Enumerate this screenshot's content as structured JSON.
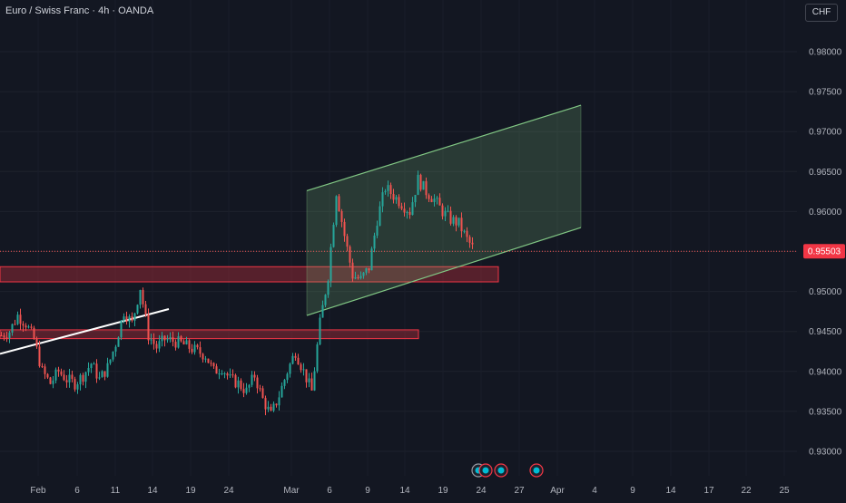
{
  "header": {
    "title": "Euro / Swiss Franc · 4h · OANDA",
    "currency": "CHF"
  },
  "colors": {
    "background": "#131722",
    "up": "#26a69a",
    "down": "#ef5350",
    "channel": "#81c784",
    "zone": "#f23645",
    "axis_text": "#b2b5be",
    "trendline": "#ffffff",
    "price_label_bg": "#f23645"
  },
  "chart_data": {
    "type": "candlestick",
    "title": "Euro / Swiss Franc · 4h · OANDA",
    "ylabel": "CHF",
    "ylim": [
      0.9285,
      0.9825
    ],
    "y_ticks": [
      "0.98000",
      "0.97500",
      "0.97000",
      "0.96500",
      "0.96000",
      "0.95500",
      "0.95000",
      "0.94500",
      "0.94000",
      "0.93500",
      "0.93000"
    ],
    "x_ticks": [
      "Feb",
      "6",
      "11",
      "14",
      "19",
      "24",
      "Mar",
      "6",
      "9",
      "14",
      "19",
      "24",
      "27",
      "Apr",
      "4",
      "9",
      "14",
      "17",
      "22",
      "25"
    ],
    "last_price": "0.95503",
    "series": [
      {
        "x": [
          0,
          9,
          18,
          27,
          36,
          45,
          54,
          63,
          72,
          81,
          90,
          99,
          108,
          117,
          126,
          135,
          144,
          153,
          162,
          171,
          180,
          189,
          198,
          207,
          216,
          225,
          234,
          243,
          252,
          261,
          270,
          279,
          288,
          297,
          306,
          315,
          324,
          333,
          342,
          351,
          360,
          369,
          378,
          387,
          396,
          405,
          414,
          423,
          432,
          441,
          450,
          459,
          468,
          477,
          486,
          495,
          504,
          513,
          522
        ],
        "y": [
          0.9445,
          0.945,
          0.947,
          0.946,
          0.944,
          0.94,
          0.9385,
          0.94,
          0.939,
          0.9385,
          0.9395,
          0.941,
          0.939,
          0.9405,
          0.9435,
          0.9475,
          0.946,
          0.9505,
          0.9445,
          0.943,
          0.944,
          0.9438,
          0.9435,
          0.943,
          0.9425,
          0.942,
          0.94,
          0.9405,
          0.939,
          0.9385,
          0.9375,
          0.9395,
          0.9365,
          0.9345,
          0.937,
          0.94,
          0.9425,
          0.94,
          0.9375,
          0.946,
          0.952,
          0.9625,
          0.957,
          0.952,
          0.9515,
          0.953,
          0.959,
          0.963,
          0.962,
          0.961,
          0.96,
          0.964,
          0.9625,
          0.9615,
          0.96,
          0.959,
          0.9585,
          0.9565,
          0.955
        ]
      }
    ],
    "annotations": {
      "channel": {
        "upper": [
          [
            338,
            0.9626
          ],
          [
            640,
            0.9733
          ]
        ],
        "lower": [
          [
            338,
            0.947
          ],
          [
            640,
            0.958
          ]
        ]
      },
      "zones": [
        {
          "x": [
            0,
            549
          ],
          "y": [
            0.9512,
            0.9531
          ]
        },
        {
          "x": [
            0,
            461
          ],
          "y": [
            0.9441,
            0.9452
          ]
        }
      ],
      "trendline": [
        [
          0,
          0.9422
        ],
        [
          186,
          0.9478
        ]
      ]
    }
  }
}
